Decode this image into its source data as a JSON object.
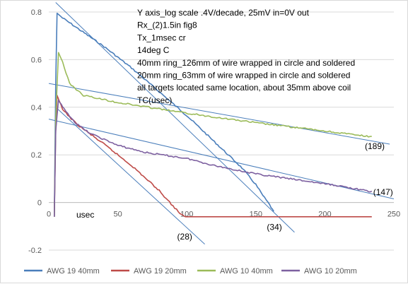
{
  "chart_data": {
    "type": "line",
    "title": "",
    "xlabel": "usec",
    "ylabel": "",
    "xlim": [
      0,
      250
    ],
    "ylim": [
      -0.2,
      0.8
    ],
    "x_ticks": [
      "0",
      "50",
      "100",
      "150",
      "200",
      "250"
    ],
    "y_ticks": [
      "-0.2",
      "0",
      "0.2",
      "0.4",
      "0.6",
      "0.8"
    ],
    "grid": "horizontal",
    "legend_position": "bottom",
    "annotation_lines": [
      "Y axis_log scale .4V/decade, 25mV in=0V out",
      "Rx_(2)1.5in fig8",
      "Tx_1msec cr",
      "14deg C",
      "40mm ring_126mm of wire wrapped in circle and soldered",
      "20mm ring_63mm of wire wrapped in circle and soldered",
      "all targets located same location, about 35mm above coil",
      "TC(usec)"
    ],
    "tc_labels": [
      {
        "text": "(189)",
        "x": 229,
        "y": 0.225
      },
      {
        "text": "(147)",
        "x": 235,
        "y": 0.032
      },
      {
        "text": "(34)",
        "x": 158,
        "y": -0.115
      },
      {
        "text": "(28)",
        "x": 93,
        "y": -0.155
      }
    ],
    "series": [
      {
        "name": "AWG 19 40mm",
        "color": "#4a7ebb",
        "points": [
          [
            4,
            -0.06
          ],
          [
            5,
            0.5
          ],
          [
            6,
            0.795
          ],
          [
            10,
            0.775
          ],
          [
            20,
            0.735
          ],
          [
            40,
            0.655
          ],
          [
            60,
            0.565
          ],
          [
            80,
            0.465
          ],
          [
            100,
            0.365
          ],
          [
            120,
            0.255
          ],
          [
            140,
            0.145
          ],
          [
            150,
            0.075
          ],
          [
            155,
            0.03
          ],
          [
            160,
            -0.01
          ],
          [
            163,
            -0.04
          ]
        ]
      },
      {
        "name": "AWG 19 20mm",
        "color": "#be4b48",
        "points": [
          [
            4,
            -0.06
          ],
          [
            5,
            0.3
          ],
          [
            6,
            0.45
          ],
          [
            10,
            0.39
          ],
          [
            20,
            0.33
          ],
          [
            40,
            0.245
          ],
          [
            60,
            0.155
          ],
          [
            80,
            0.05
          ],
          [
            90,
            -0.015
          ],
          [
            95,
            -0.045
          ],
          [
            98,
            -0.06
          ],
          [
            100,
            -0.06
          ],
          [
            150,
            -0.06
          ],
          [
            200,
            -0.06
          ],
          [
            234,
            -0.06
          ]
        ]
      },
      {
        "name": "AWG 10 40mm",
        "color": "#9bbb59",
        "points": [
          [
            4,
            -0.06
          ],
          [
            5,
            0.35
          ],
          [
            7,
            0.63
          ],
          [
            10,
            0.59
          ],
          [
            15,
            0.5
          ],
          [
            25,
            0.45
          ],
          [
            50,
            0.42
          ],
          [
            100,
            0.375
          ],
          [
            150,
            0.335
          ],
          [
            200,
            0.3
          ],
          [
            234,
            0.275
          ]
        ]
      },
      {
        "name": "AWG 10 20mm",
        "color": "#7d60a0",
        "points": [
          [
            4,
            -0.06
          ],
          [
            5,
            0.3
          ],
          [
            7,
            0.43
          ],
          [
            10,
            0.4
          ],
          [
            20,
            0.33
          ],
          [
            30,
            0.29
          ],
          [
            40,
            0.265
          ],
          [
            50,
            0.24
          ],
          [
            70,
            0.21
          ],
          [
            100,
            0.185
          ],
          [
            120,
            0.155
          ],
          [
            150,
            0.12
          ],
          [
            180,
            0.095
          ],
          [
            210,
            0.07
          ],
          [
            234,
            0.045
          ]
        ]
      }
    ],
    "trend_lines": [
      {
        "color": "#4a7ebb",
        "from": [
          5,
          0.84
        ],
        "to": [
          178,
          -0.125
        ]
      },
      {
        "color": "#4a7ebb",
        "from": [
          0,
          0.5
        ],
        "to": [
          247,
          0.245
        ]
      },
      {
        "color": "#4a7ebb",
        "from": [
          0,
          0.35
        ],
        "to": [
          250,
          0.015
        ]
      },
      {
        "color": "#4a7ebb",
        "from": [
          5,
          0.4
        ],
        "to": [
          113,
          -0.175
        ]
      }
    ]
  }
}
